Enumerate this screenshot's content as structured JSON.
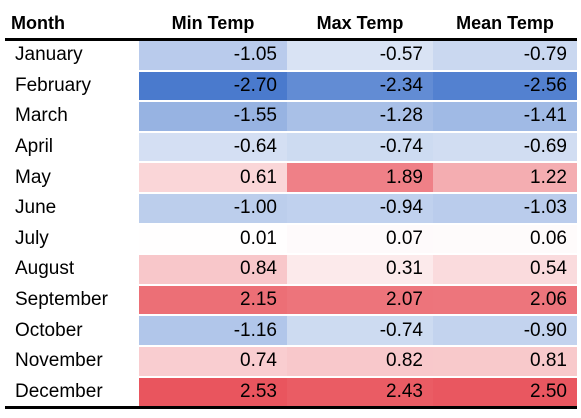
{
  "chart_data": {
    "type": "table",
    "columns": [
      "Month",
      "Min Temp",
      "Max Temp",
      "Mean Temp"
    ],
    "rows": [
      {
        "month": "January",
        "values": [
          "-1.05",
          "-0.57",
          "-0.79"
        ]
      },
      {
        "month": "February",
        "values": [
          "-2.70",
          "-2.34",
          "-2.56"
        ]
      },
      {
        "month": "March",
        "values": [
          "-1.55",
          "-1.28",
          "-1.41"
        ]
      },
      {
        "month": "April",
        "values": [
          "-0.64",
          "-0.74",
          "-0.69"
        ]
      },
      {
        "month": "May",
        "values": [
          "0.61",
          "1.89",
          "1.22"
        ]
      },
      {
        "month": "June",
        "values": [
          "-1.00",
          "-0.94",
          "-1.03"
        ]
      },
      {
        "month": "July",
        "values": [
          "0.01",
          "0.07",
          "0.06"
        ]
      },
      {
        "month": "August",
        "values": [
          "0.84",
          "0.31",
          "0.54"
        ]
      },
      {
        "month": "September",
        "values": [
          "2.15",
          "2.07",
          "2.06"
        ]
      },
      {
        "month": "October",
        "values": [
          "-1.16",
          "-0.74",
          "-0.90"
        ]
      },
      {
        "month": "November",
        "values": [
          "0.74",
          "0.82",
          "0.81"
        ]
      },
      {
        "month": "December",
        "values": [
          "2.53",
          "2.43",
          "2.50"
        ]
      }
    ],
    "color_scale": {
      "min": -2.7,
      "mid": 0,
      "max": 2.53,
      "min_color": "#4a7acd",
      "mid_color": "#ffffff",
      "max_color": "#e9555e"
    }
  }
}
